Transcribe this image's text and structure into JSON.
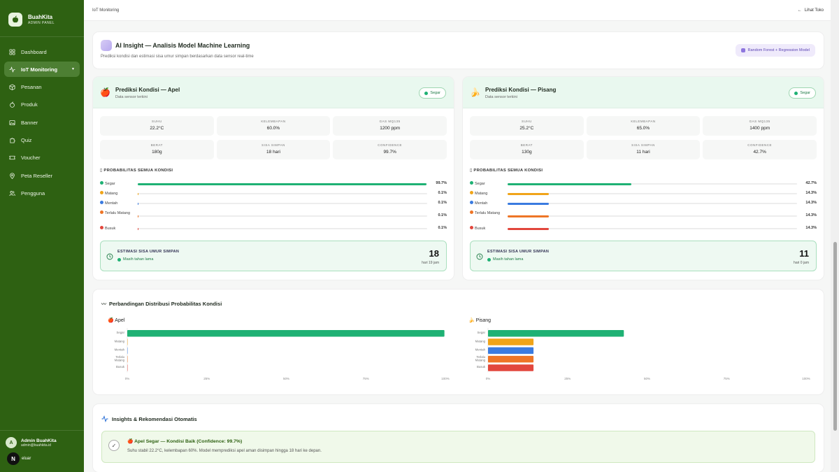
{
  "brand": {
    "name": "BuahKita",
    "subtitle": "ADMIN PANEL"
  },
  "sidebar": {
    "items": [
      {
        "label": "Dashboard",
        "icon": "grid-icon",
        "active": false
      },
      {
        "label": "IoT Monitoring",
        "icon": "activity-icon",
        "active": true
      },
      {
        "label": "Pesanan",
        "icon": "box-icon",
        "active": false
      },
      {
        "label": "Produk",
        "icon": "apple-icon",
        "active": false
      },
      {
        "label": "Banner",
        "icon": "image-icon",
        "active": false
      },
      {
        "label": "Quiz",
        "icon": "puzzle-icon",
        "active": false
      },
      {
        "label": "Voucher",
        "icon": "ticket-icon",
        "active": false
      },
      {
        "label": "Peta Reseller",
        "icon": "map-pin-icon",
        "active": false
      },
      {
        "label": "Pengguna",
        "icon": "users-icon",
        "active": false
      }
    ],
    "admin": {
      "initial": "A",
      "name": "Admin BuahKita",
      "email": "admin@buahkita.id"
    },
    "logout_badge": "N",
    "logout_label": "eluar"
  },
  "topbar": {
    "breadcrumb": "IoT Monitoring",
    "view_shop": "Lihat Toko"
  },
  "ai_insight": {
    "title": "AI Insight — Analisis Model Machine Learning",
    "subtitle": "Prediksi kondisi dan estimasi sisa umur simpan berdasarkan data sensor real-time",
    "model_badge": "Random Forest + Regression Model"
  },
  "colors": {
    "segar": "#1fb174",
    "matang": "#f0a419",
    "mentah": "#3a7be0",
    "terlalu_matang": "#ee7526",
    "busuk": "#e2473d",
    "sidebar": "#2e6112"
  },
  "labels": {
    "suhu": "SUHU",
    "kelembapan": "KELEMBAPAN",
    "gas": "GAS MQ135",
    "berat": "BERAT",
    "sisa_simpan": "SISA SIMPAN",
    "confidence": "CONFIDENCE",
    "prob_title": "PROBABILITAS SEMUA KONDISI",
    "estimasi": "ESTIMASI SISA UMUR SIMPAN",
    "sub": "Data sensor terkini"
  },
  "apel": {
    "emoji": "🍎",
    "title": "Prediksi Kondisi — Apel",
    "status": "Segar",
    "suhu": "22.2°C",
    "kelembapan": "60.0%",
    "gas": "1200 ppm",
    "berat": "180g",
    "sisa_simpan": "18 hari",
    "confidence": "99.7%",
    "probs": [
      {
        "label": "Segar",
        "value": 99.7,
        "display": "99.7%",
        "key": "segar"
      },
      {
        "label": "Matang",
        "value": 0.1,
        "display": "0.1%",
        "key": "matang"
      },
      {
        "label": "Mentah",
        "value": 0.1,
        "display": "0.1%",
        "key": "mentah"
      },
      {
        "label": "Terlalu Matang",
        "value": 0.1,
        "display": "0.1%",
        "key": "terlalu_matang"
      },
      {
        "label": "Busuk",
        "value": 0.1,
        "display": "0.1%",
        "key": "busuk"
      }
    ],
    "estimasi_status": "Masih tahan lama",
    "estimasi_days": "18",
    "estimasi_unit": "hari 19 jam"
  },
  "pisang": {
    "emoji": "🍌",
    "title": "Prediksi Kondisi — Pisang",
    "status": "Segar",
    "suhu": "25.2°C",
    "kelembapan": "65.0%",
    "gas": "1400 ppm",
    "berat": "130g",
    "sisa_simpan": "11 hari",
    "confidence": "42.7%",
    "probs": [
      {
        "label": "Segar",
        "value": 42.7,
        "display": "42.7%",
        "key": "segar"
      },
      {
        "label": "Matang",
        "value": 14.3,
        "display": "14.3%",
        "key": "matang"
      },
      {
        "label": "Mentah",
        "value": 14.3,
        "display": "14.3%",
        "key": "mentah"
      },
      {
        "label": "Terlalu Matang",
        "value": 14.3,
        "display": "14.3%",
        "key": "terlalu_matang"
      },
      {
        "label": "Busuk",
        "value": 14.3,
        "display": "14.3%",
        "key": "busuk"
      }
    ],
    "estimasi_status": "Masih tahan lama",
    "estimasi_days": "11",
    "estimasi_unit": "hari 0 jam"
  },
  "comparison": {
    "title": "Perbandingan Distribusi Probabilitas Kondisi"
  },
  "chart_data": [
    {
      "type": "bar",
      "orientation": "horizontal",
      "title": "Apel",
      "categories": [
        "Segar",
        "Matang",
        "Mentah",
        "Terlalu Matang",
        "Busuk"
      ],
      "values": [
        99.7,
        0.1,
        0.1,
        0.1,
        0.1
      ],
      "xlim": [
        0,
        100
      ],
      "xticks": [
        "0%",
        "25%",
        "50%",
        "75%",
        "100%"
      ]
    },
    {
      "type": "bar",
      "orientation": "horizontal",
      "title": "Pisang",
      "categories": [
        "Segar",
        "Matang",
        "Mentah",
        "Terlalu Matang",
        "Busuk"
      ],
      "values": [
        42.7,
        14.3,
        14.3,
        14.3,
        14.3
      ],
      "xlim": [
        0,
        100
      ],
      "xticks": [
        "0%",
        "25%",
        "50%",
        "75%",
        "100%"
      ]
    }
  ],
  "recommendations": {
    "title": "Insights & Rekomendasi Otomatis",
    "items": [
      {
        "emoji": "🍎",
        "headline": "Apel Segar — Kondisi Baik (Confidence: 99.7%)",
        "description": "Suhu stabil 22.2°C, kelembapan 60%. Model memprediksi apel aman disimpan hingga 18 hari ke depan."
      }
    ]
  }
}
